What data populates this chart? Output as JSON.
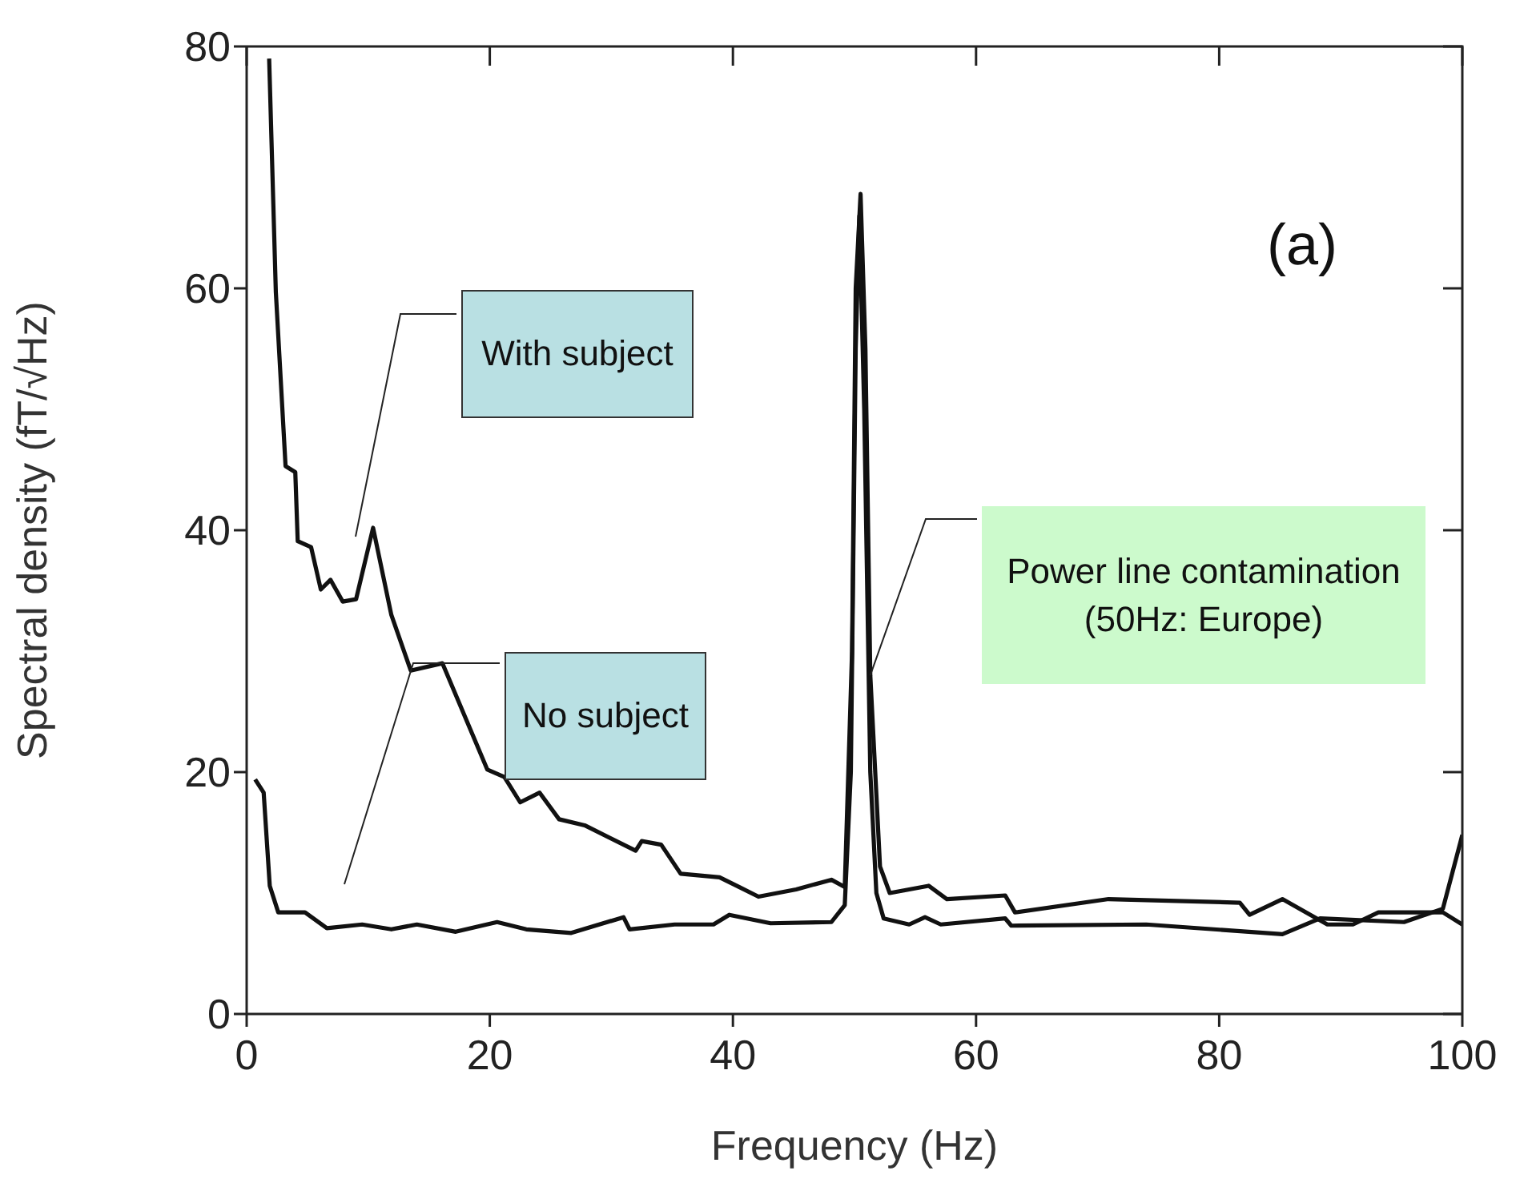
{
  "chart_data": {
    "type": "line",
    "xlabel": "Frequency (Hz)",
    "ylabel": "Spectral density (fT/√Hz)",
    "xlim": [
      0,
      100
    ],
    "ylim": [
      0,
      80
    ],
    "xticks": [
      0,
      20,
      40,
      60,
      80,
      100
    ],
    "yticks": [
      0,
      20,
      40,
      60,
      80
    ],
    "marker": "none",
    "line_style": "solid",
    "series": [
      {
        "color": "#111111",
        "x": [
          1.85,
          2.4,
          3.2,
          4,
          4.2,
          5.3,
          6.1,
          6.9,
          7.9,
          9,
          10.4,
          11.9,
          13.5,
          16.1,
          19.8,
          21.2,
          22.5,
          24.1,
          25.7,
          27.8,
          32,
          32.5,
          34.1,
          35.7,
          38.9,
          40.5,
          42.1,
          45.2,
          48.1,
          49.2,
          49.8,
          50.1,
          50.5,
          50.9,
          51.3,
          52.1,
          52.9,
          54.5,
          56.1,
          57.6,
          62.4,
          63.2,
          70.9,
          81.7,
          82.5,
          85.2,
          88.9,
          91,
          93.1,
          98.4,
          100
        ],
        "values": [
          79,
          59.7,
          45.3,
          44.8,
          39.1,
          38.6,
          35.1,
          35.9,
          34.1,
          34.3,
          40.2,
          33,
          28.4,
          29,
          20.2,
          19.6,
          17.5,
          18.3,
          16.1,
          15.6,
          13.5,
          14.3,
          14,
          11.6,
          11.3,
          10.5,
          9.7,
          10.3,
          11.1,
          10.5,
          30,
          60,
          67.8,
          55,
          28,
          12.2,
          10,
          10.3,
          10.6,
          9.5,
          9.8,
          8.4,
          9.5,
          9.2,
          8.2,
          9.5,
          7.4,
          7.4,
          8.4,
          8.4,
          7.4
        ]
      },
      {
        "color": "#111111",
        "x": [
          0.7,
          1.4,
          1.9,
          2.6,
          4.8,
          6.6,
          9.5,
          11.9,
          14,
          17.2,
          20.6,
          23,
          26.7,
          31,
          31.5,
          35.2,
          38.4,
          39.7,
          43.1,
          48.1,
          49.2,
          49.7,
          50.1,
          50.4,
          50.8,
          51.3,
          51.8,
          52.4,
          54.5,
          55.8,
          57.1,
          62.4,
          62.9,
          74,
          85.2,
          88.3,
          95.2,
          98.4,
          100
        ],
        "values": [
          19.4,
          18.3,
          10.6,
          8.4,
          8.4,
          7.1,
          7.4,
          7,
          7.4,
          6.8,
          7.6,
          7,
          6.7,
          8,
          7,
          7.4,
          7.4,
          8.2,
          7.5,
          7.6,
          9,
          20,
          55,
          66,
          50,
          20,
          10,
          7.9,
          7.4,
          8,
          7.4,
          7.9,
          7.3,
          7.4,
          6.6,
          7.9,
          7.6,
          8.7,
          14.8
        ]
      }
    ],
    "annotations": [
      "With subject",
      "No subject",
      {
        "text": "Power line contamination (50Hz: Europe)",
        "x": 51.3,
        "y": 28
      },
      "(a)"
    ]
  }
}
